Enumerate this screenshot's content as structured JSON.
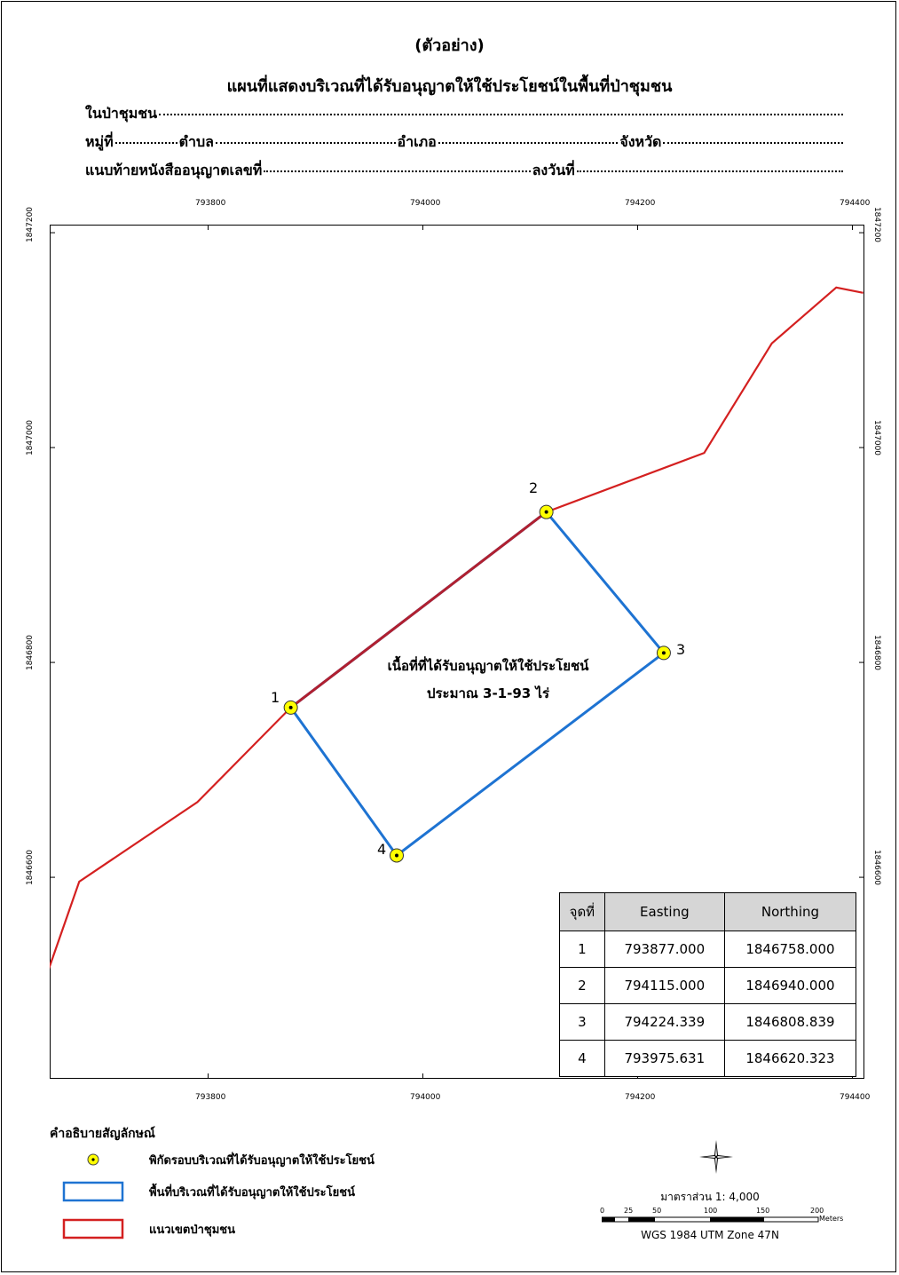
{
  "header": {
    "example_label": "(ตัวอย่าง)",
    "title": "แผนที่แสดงบริเวณที่ได้รับอนุญาตให้ใช้ประโยชน์ในพื้นที่ป่าชุมชน",
    "line1_label": "ในป่าชุมชน",
    "line2_village": "หมู่ที่",
    "line2_subdistrict": "ตำบล",
    "line2_district": "อำเภอ",
    "line2_province": "จังหวัด",
    "line3_permit": "แนบท้ายหนังสืออนุญาตเลขที่",
    "line3_date": "ลงวันที่"
  },
  "axes": {
    "easting_ticks": [
      "793800",
      "794000",
      "794200",
      "794400"
    ],
    "northing_ticks": [
      "1847200",
      "1847000",
      "1846800",
      "1846600"
    ]
  },
  "map": {
    "area_label_line1": "เนื้อที่ที่ได้รับอนุญาตให้ใช้ประโยชน์",
    "area_label_line2": "ประมาณ 3-1-93 ไร่",
    "boundary_color": "#d42020",
    "permit_area_color": "#1e73d2",
    "point_color": "#ffff00",
    "forest_boundary": [
      [
        793650,
        1846510
      ],
      [
        793680,
        1846596
      ],
      [
        793790,
        1846670
      ],
      [
        793877,
        1846758
      ],
      [
        794115,
        1846940
      ],
      [
        794262,
        1846995
      ],
      [
        794325,
        1847097
      ],
      [
        794385,
        1847149
      ],
      [
        794410,
        1847144
      ]
    ],
    "points": [
      {
        "id": "1",
        "e": 793877.0,
        "n": 1846758.0
      },
      {
        "id": "2",
        "e": 794115.0,
        "n": 1846940.0
      },
      {
        "id": "3",
        "e": 794224.339,
        "n": 1846808.839
      },
      {
        "id": "4",
        "e": 793975.631,
        "n": 1846620.323
      }
    ]
  },
  "table": {
    "headers": [
      "จุดที่",
      "Easting",
      "Northing"
    ],
    "rows": [
      [
        "1",
        "793877.000",
        "1846758.000"
      ],
      [
        "2",
        "794115.000",
        "1846940.000"
      ],
      [
        "3",
        "794224.339",
        "1846808.839"
      ],
      [
        "4",
        "793975.631",
        "1846620.323"
      ]
    ]
  },
  "legend": {
    "title": "คำอธิบายสัญลักษณ์",
    "items": [
      {
        "label": "พิกัดรอบบริเวณที่ได้รับอนุญาตให้ใช้ประโยชน์"
      },
      {
        "label": "พื้นที่บริเวณที่ได้รับอนุญาตให้ใช้ประโยชน์"
      },
      {
        "label": "แนวเขตป่าชุมชน"
      }
    ]
  },
  "scale": {
    "text": "มาตราส่วน 1: 4,000",
    "labels": [
      "0",
      "25",
      "50",
      "100",
      "150",
      "200"
    ],
    "unit": "Meters",
    "crs": "WGS 1984 UTM Zone 47N"
  }
}
